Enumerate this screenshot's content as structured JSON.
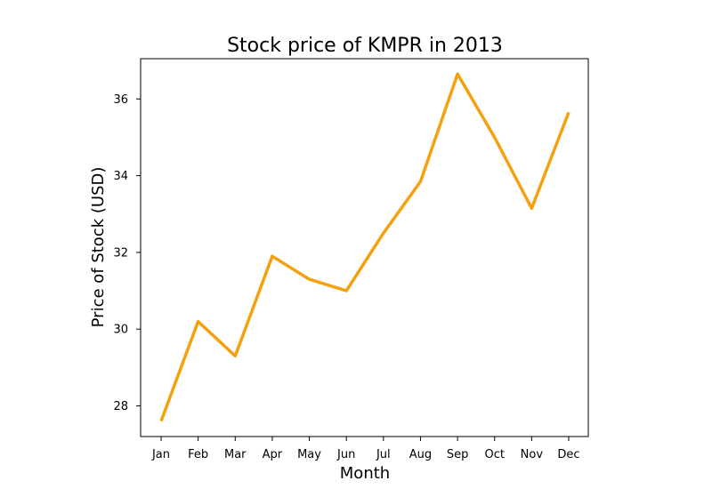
{
  "chart_data": {
    "type": "line",
    "title": "Stock price of KMPR in 2013",
    "xlabel": "Month",
    "ylabel": "Price of Stock (USD)",
    "categories": [
      "Jan",
      "Feb",
      "Mar",
      "Apr",
      "May",
      "Jun",
      "Jul",
      "Aug",
      "Sep",
      "Oct",
      "Nov",
      "Dec"
    ],
    "series": [
      {
        "values": [
          27.6,
          30.2,
          29.3,
          31.9,
          31.3,
          31.0,
          32.5,
          33.85,
          36.65,
          35.0,
          33.15,
          35.65
        ],
        "color": "#f5a10f"
      }
    ],
    "yticks": [
      28,
      30,
      32,
      34,
      36
    ],
    "ylim": [
      27.2,
      37.05
    ],
    "grid": false,
    "legend": "none"
  }
}
